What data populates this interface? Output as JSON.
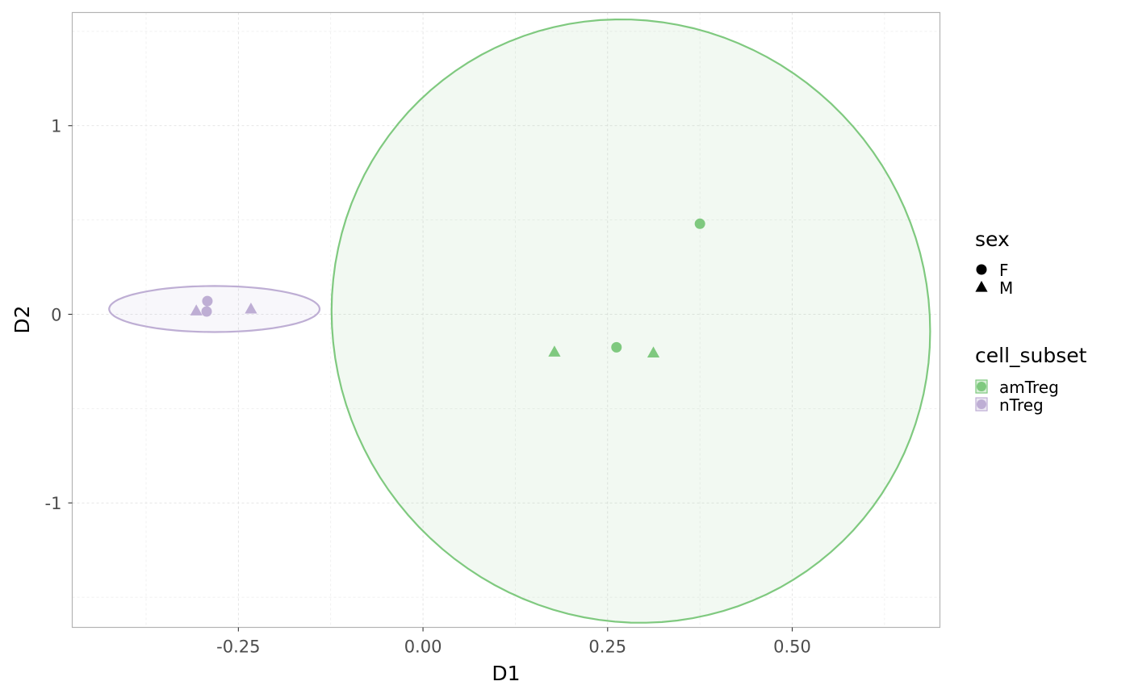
{
  "chart_data": {
    "type": "scatter",
    "xlabel": "D1",
    "ylabel": "D2",
    "xlim": [
      -0.475,
      0.7
    ],
    "ylim": [
      -1.66,
      1.6
    ],
    "x_ticks": [
      -0.25,
      0.0,
      0.25,
      0.5
    ],
    "x_tick_labels": [
      "-0.25",
      "0.00",
      "0.25",
      "0.50"
    ],
    "y_ticks": [
      -1,
      0,
      1
    ],
    "y_tick_labels": [
      "-1",
      "0",
      "1"
    ],
    "grid": true,
    "legend_position": "right",
    "colors": {
      "amTreg": "#7fc97f",
      "nTreg": "#beaed4"
    },
    "legends": [
      {
        "title": "sex",
        "entries": [
          {
            "label": "F",
            "shape": "circle"
          },
          {
            "label": "M",
            "shape": "triangle"
          }
        ]
      },
      {
        "title": "cell_subset",
        "entries": [
          {
            "label": "amTreg",
            "color": "#7fc97f"
          },
          {
            "label": "nTreg",
            "color": "#beaed4"
          }
        ]
      }
    ],
    "series": [
      {
        "name": "amTreg",
        "color": "#7fc97f",
        "points": [
          {
            "x": 0.375,
            "y": 0.48,
            "sex": "F"
          },
          {
            "x": 0.262,
            "y": -0.175,
            "sex": "F"
          },
          {
            "x": 0.178,
            "y": -0.2,
            "sex": "M"
          },
          {
            "x": 0.312,
            "y": -0.205,
            "sex": "M"
          }
        ],
        "ellipse": {
          "cx": 0.2815,
          "cy": -0.036,
          "rx": 0.4,
          "ry": 1.62,
          "angle_deg": -38
        }
      },
      {
        "name": "nTreg",
        "color": "#beaed4",
        "points": [
          {
            "x": -0.292,
            "y": 0.07,
            "sex": "F"
          },
          {
            "x": -0.293,
            "y": 0.015,
            "sex": "F"
          },
          {
            "x": -0.307,
            "y": 0.018,
            "sex": "M"
          },
          {
            "x": -0.233,
            "y": 0.028,
            "sex": "M"
          }
        ],
        "ellipse": {
          "cx": -0.2825,
          "cy": 0.028,
          "rx": 0.1425,
          "ry": 0.122,
          "angle_deg": 0
        }
      }
    ]
  }
}
